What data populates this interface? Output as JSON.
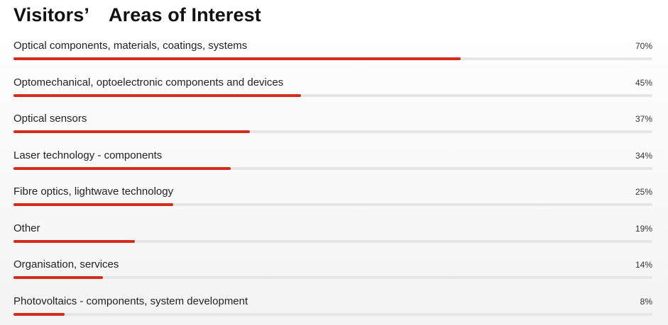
{
  "chart_data": {
    "type": "bar",
    "title": "Visitors’ Areas of Interest",
    "categories": [
      "Optical components, materials, coatings, systems",
      "Optomechanical, optoelectronic components and devices",
      "Optical sensors",
      "Laser technology - components",
      "Fibre optics, lightwave technology",
      "Other",
      "Organisation, services",
      "Photovoltaics - components, system development"
    ],
    "values": [
      70,
      45,
      37,
      34,
      25,
      19,
      14,
      8
    ],
    "value_labels": [
      "70%",
      "45%",
      "37%",
      "34%",
      "25%",
      "19%",
      "14%",
      "8%"
    ],
    "unit": "%",
    "xlim": [
      0,
      100
    ],
    "orientation": "horizontal",
    "colors": {
      "bar": "#d42c1f",
      "track": "#e6e6e6"
    }
  }
}
